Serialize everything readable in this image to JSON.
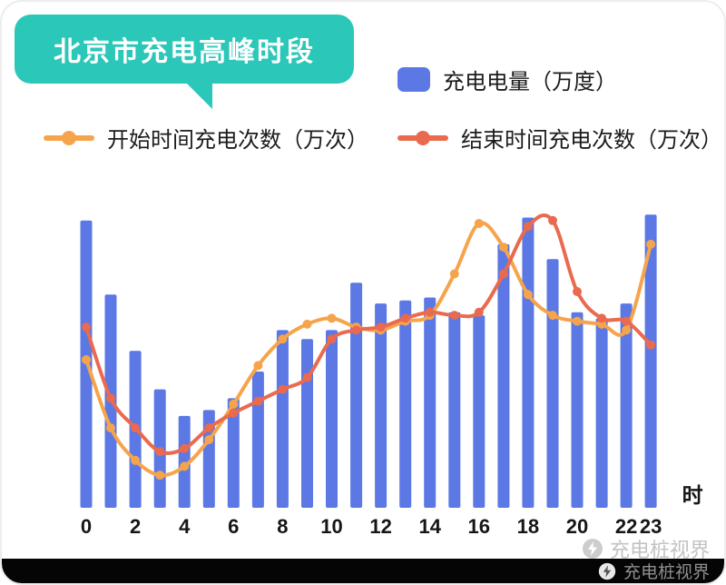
{
  "title": {
    "text": "北京市充电高峰时段"
  },
  "legend": {
    "bar": "充电电量（万度）",
    "start": "开始时间充电次数（万次）",
    "end": "结束时间充电次数（万次）"
  },
  "watermark": {
    "text": "充电桩视界"
  },
  "colors": {
    "badge": "#2BC7B9",
    "bar": "#5B78E5",
    "start_line": "#F6A44C",
    "end_line": "#EA6A4F",
    "axis_text": "#161616",
    "watermark_text": "#c3c3c3",
    "bottom_bar": "#050505"
  },
  "chart_data": {
    "type": "bar",
    "subtype": "combo-bar-line",
    "title": "北京市充电高峰时段",
    "xlabel": "时",
    "ylabel": "",
    "grid": false,
    "legend_position": "top",
    "x": [
      0,
      1,
      2,
      3,
      4,
      5,
      6,
      7,
      8,
      9,
      10,
      11,
      12,
      13,
      14,
      15,
      16,
      17,
      18,
      19,
      20,
      21,
      22,
      23
    ],
    "x_ticks": [
      0,
      2,
      4,
      6,
      8,
      10,
      12,
      14,
      16,
      18,
      20,
      22,
      23
    ],
    "x_unit": "时",
    "ylim": [
      0,
      102
    ],
    "series": [
      {
        "name": "充电电量（万度）",
        "type": "bar",
        "color": "#5B78E5",
        "values": [
          97,
          72,
          53,
          40,
          31,
          33,
          37,
          46,
          60,
          57,
          60,
          76,
          69,
          70,
          71,
          66,
          65,
          89,
          98,
          84,
          66,
          64,
          69,
          99
        ]
      },
      {
        "name": "开始时间充电次数（万次）",
        "type": "line",
        "color": "#F6A44C",
        "values": [
          50,
          27,
          16,
          11,
          14,
          23,
          35,
          48,
          57,
          62,
          64,
          61,
          60,
          63,
          65,
          79,
          96,
          88,
          72,
          65,
          63,
          62,
          60,
          89
        ]
      },
      {
        "name": "结束时间充电次数（万次）",
        "type": "line",
        "color": "#EA6A4F",
        "values": [
          61,
          37,
          27,
          19,
          20,
          27,
          32,
          36,
          40,
          44,
          57,
          60,
          61,
          64,
          66,
          65,
          66,
          79,
          95,
          97,
          73,
          64,
          63,
          55
        ]
      }
    ]
  }
}
